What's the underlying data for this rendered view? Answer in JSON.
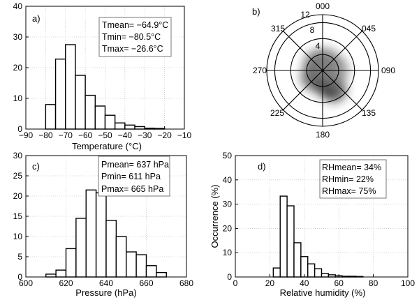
{
  "chart_data": [
    {
      "id": "a",
      "type": "bar",
      "panel_label": "a)",
      "xlabel": "Temperature (°C)",
      "ylabel": "",
      "xlim": [
        -90,
        -10
      ],
      "ylim": [
        0,
        40
      ],
      "xticks": [
        -90,
        -80,
        -70,
        -60,
        -50,
        -40,
        -30,
        -20,
        -10
      ],
      "xtick_labels": [
        "−90",
        "−80",
        "−70",
        "−60",
        "−50",
        "−40",
        "−30",
        "−20",
        "−10"
      ],
      "yticks": [
        0,
        10,
        20,
        30,
        40
      ],
      "ytick_labels": [
        "0",
        "10",
        "20",
        "30",
        "40"
      ],
      "bin_width": 5,
      "bin_starts": [
        -80,
        -75,
        -70,
        -65,
        -60,
        -55,
        -50,
        -45,
        -40,
        -35,
        -30,
        -25
      ],
      "values": [
        8,
        22.8,
        27.5,
        17.5,
        11,
        7.5,
        4.5,
        2,
        1.3,
        0.8,
        0.3,
        0.2
      ],
      "grid": true,
      "stats": [
        "Tmean= −64.9°C",
        "Tmin= −80.5°C",
        "Tmax= −26.6°C"
      ]
    },
    {
      "id": "b",
      "type": "polar",
      "panel_label": "b)",
      "radial_ticks": [
        4,
        8,
        12
      ],
      "radial_tick_labels": [
        "4",
        "8",
        "12"
      ],
      "direction_labels": [
        "000",
        "045",
        "090",
        "135",
        "180",
        "225",
        "270",
        "315"
      ],
      "density_blobs": [
        {
          "angle": 150,
          "radius": 5.5,
          "spread": 3.2,
          "intensity": 0.85
        },
        {
          "angle": 175,
          "radius": 3.5,
          "spread": 2.8,
          "intensity": 0.9
        },
        {
          "angle": 230,
          "radius": 2.5,
          "spread": 3.6,
          "intensity": 0.7
        },
        {
          "angle": 320,
          "radius": 2.2,
          "spread": 3.4,
          "intensity": 0.6
        },
        {
          "angle": 20,
          "radius": 2.0,
          "spread": 3.8,
          "intensity": 0.55
        },
        {
          "angle": 90,
          "radius": 2.5,
          "spread": 4.0,
          "intensity": 0.5
        }
      ]
    },
    {
      "id": "c",
      "type": "bar",
      "panel_label": "c)",
      "xlabel": "Pressure (hPa)",
      "ylabel": "",
      "xlim": [
        600,
        680
      ],
      "ylim": [
        0,
        30
      ],
      "xticks": [
        600,
        620,
        640,
        660,
        680
      ],
      "xtick_labels": [
        "600",
        "620",
        "640",
        "660",
        "680"
      ],
      "yticks": [
        0,
        5,
        10,
        15,
        20,
        25,
        30
      ],
      "ytick_labels": [
        "0",
        "5",
        "10",
        "15",
        "20",
        "25",
        "30"
      ],
      "bin_width": 5,
      "bin_starts": [
        610,
        615,
        620,
        625,
        630,
        635,
        640,
        645,
        650,
        655,
        660,
        665
      ],
      "values": [
        0.7,
        1.7,
        7,
        14.5,
        21.5,
        20.8,
        14,
        10,
        6.2,
        5.5,
        2.8,
        1.1
      ],
      "grid": true,
      "stats": [
        "Pmean= 637 hPa",
        "Pmin= 611 hPa",
        "Pmax= 665 hPa"
      ]
    },
    {
      "id": "d",
      "type": "bar",
      "panel_label": "d)",
      "xlabel": "Relative humidity (%)",
      "ylabel": "Occurrence (%)",
      "xlim": [
        0,
        100
      ],
      "ylim": [
        0,
        50
      ],
      "xticks": [
        0,
        20,
        40,
        60,
        80,
        100
      ],
      "xtick_labels": [
        "0",
        "20",
        "40",
        "60",
        "80",
        "100"
      ],
      "yticks": [
        0,
        10,
        20,
        30,
        40,
        50
      ],
      "ytick_labels": [
        "0",
        "10",
        "20",
        "30",
        "40",
        "50"
      ],
      "bin_width": 4,
      "bin_starts": [
        22,
        26,
        30,
        34,
        38,
        42,
        46,
        50,
        54,
        58,
        62,
        66,
        70
      ],
      "values": [
        3.7,
        33.3,
        29.3,
        14.1,
        8.4,
        5.4,
        3.4,
        1.4,
        0.9,
        0.5,
        0.3,
        0.3,
        0.2
      ],
      "grid": true,
      "stats": [
        "RHmean= 34%",
        "RHmin= 22%",
        "RHmax= 75%"
      ]
    }
  ]
}
